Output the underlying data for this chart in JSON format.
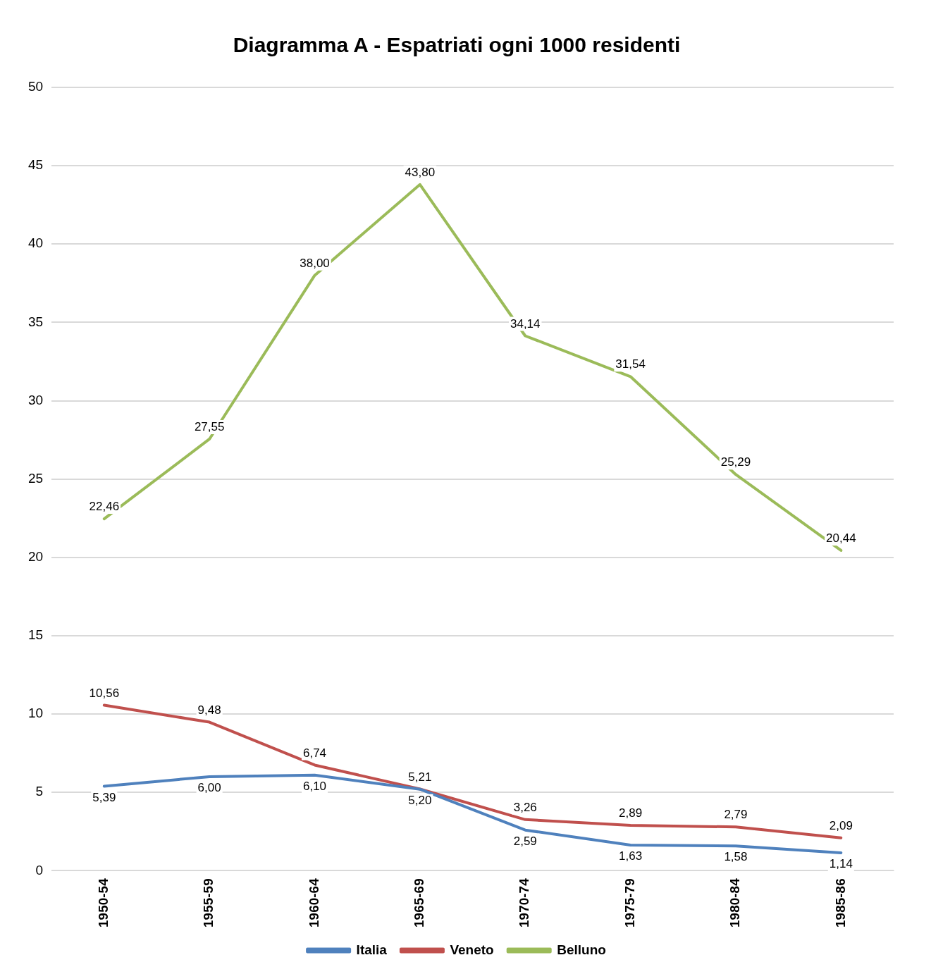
{
  "chart_data": {
    "type": "line",
    "title": "Diagramma A - Espatriati ogni 1000 residenti",
    "categories": [
      "1950-54",
      "1955-59",
      "1960-64",
      "1965-69",
      "1970-74",
      "1975-79",
      "1980-84",
      "1985-86"
    ],
    "series": [
      {
        "name": "Italia",
        "color": "#4f81bd",
        "values": [
          5.39,
          6.0,
          6.1,
          5.2,
          2.59,
          1.63,
          1.58,
          1.14
        ],
        "value_labels": [
          "5,39",
          "6,00",
          "6,10",
          "5,20",
          "2,59",
          "1,63",
          "1,58",
          "1,14"
        ]
      },
      {
        "name": "Veneto",
        "color": "#c0504d",
        "values": [
          10.56,
          9.48,
          6.74,
          5.21,
          3.26,
          2.89,
          2.79,
          2.09
        ],
        "value_labels": [
          "10,56",
          "9,48",
          "6,74",
          "5,21",
          "3,26",
          "2,89",
          "2,79",
          "2,09"
        ]
      },
      {
        "name": "Belluno",
        "color": "#9bbb59",
        "values": [
          22.46,
          27.55,
          38.0,
          43.8,
          34.14,
          31.54,
          25.29,
          20.44
        ],
        "value_labels": [
          "22,46",
          "27,55",
          "38,00",
          "43,80",
          "34,14",
          "31,54",
          "25,29",
          "20,44"
        ]
      }
    ],
    "ylim": [
      0,
      50
    ],
    "yticks": [
      0,
      5,
      10,
      15,
      20,
      25,
      30,
      35,
      40,
      45,
      50
    ],
    "grid": "y",
    "legend": "bottom",
    "marker": "none",
    "line_style": "solid"
  }
}
